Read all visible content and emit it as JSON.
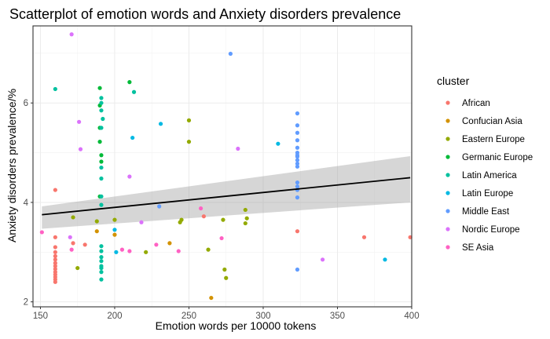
{
  "chart_data": {
    "type": "scatter",
    "title": "Scatterplot of emotion words and Anxiety disorders prevalence",
    "xlabel": "Emotion words per 10000 tokens",
    "ylabel": "Anxiety disorders prevalence/%",
    "xlim": [
      145,
      400
    ],
    "ylim": [
      1.9,
      7.55
    ],
    "xticks": [
      150,
      200,
      250,
      300,
      350,
      400
    ],
    "yticks": [
      2,
      4,
      6
    ],
    "grid": true,
    "legend": {
      "title": "cluster",
      "placement": "right"
    },
    "colors": {
      "African": "#F8766D",
      "Confucian Asia": "#D39200",
      "Eastern Europe": "#93AA00",
      "Germanic Europe": "#00BA38",
      "Latin America": "#00C19F",
      "Latin Europe": "#00B9E3",
      "Middle East": "#619CFF",
      "Nordic Europe": "#DB72FB",
      "SE Asia": "#FF61C3"
    },
    "trend": {
      "intercept": 3.3,
      "slope": 0.003,
      "ci_low": [
        3.47,
        4.0
      ],
      "ci_high": [
        3.92,
        4.93
      ],
      "x_range": [
        151,
        399
      ]
    },
    "series": [
      {
        "name": "African",
        "points": [
          [
            160,
            4.25
          ],
          [
            160,
            3.3
          ],
          [
            160,
            3.1
          ],
          [
            160,
            3.0
          ],
          [
            160,
            2.92
          ],
          [
            160,
            2.85
          ],
          [
            160,
            2.78
          ],
          [
            160,
            2.72
          ],
          [
            160,
            2.66
          ],
          [
            160,
            2.6
          ],
          [
            160,
            2.55
          ],
          [
            160,
            2.5
          ],
          [
            160,
            2.45
          ],
          [
            160,
            2.4
          ],
          [
            172,
            3.18
          ],
          [
            180,
            3.15
          ],
          [
            260,
            3.72
          ],
          [
            323,
            3.42
          ],
          [
            368,
            3.3
          ],
          [
            399,
            3.3
          ]
        ]
      },
      {
        "name": "Confucian Asia",
        "points": [
          [
            188,
            3.42
          ],
          [
            200,
            3.35
          ],
          [
            237,
            3.18
          ],
          [
            265,
            2.08
          ]
        ]
      },
      {
        "name": "Eastern Europe",
        "points": [
          [
            172,
            3.7
          ],
          [
            175,
            2.68
          ],
          [
            188,
            3.62
          ],
          [
            200,
            3.65
          ],
          [
            221,
            3.0
          ],
          [
            244,
            3.6
          ],
          [
            245,
            3.65
          ],
          [
            250,
            5.65
          ],
          [
            250,
            5.22
          ],
          [
            263,
            3.05
          ],
          [
            273,
            3.65
          ],
          [
            274,
            2.65
          ],
          [
            275,
            2.48
          ],
          [
            288,
            3.58
          ],
          [
            288,
            3.85
          ],
          [
            289,
            3.68
          ]
        ]
      },
      {
        "name": "Germanic Europe",
        "points": [
          [
            190,
            6.3
          ],
          [
            190,
            5.95
          ],
          [
            190,
            5.5
          ],
          [
            190,
            5.22
          ],
          [
            191,
            4.95
          ],
          [
            191,
            4.82
          ],
          [
            190,
            4.12
          ],
          [
            210,
            6.42
          ]
        ]
      },
      {
        "name": "Latin America",
        "points": [
          [
            160,
            6.28
          ],
          [
            191,
            6.1
          ],
          [
            191,
            6.0
          ],
          [
            191,
            5.85
          ],
          [
            192,
            5.68
          ],
          [
            191,
            5.5
          ],
          [
            191,
            4.7
          ],
          [
            191,
            4.48
          ],
          [
            191,
            4.12
          ],
          [
            191,
            3.95
          ],
          [
            191,
            3.12
          ],
          [
            191,
            3.02
          ],
          [
            191,
            2.9
          ],
          [
            191,
            2.82
          ],
          [
            191,
            2.72
          ],
          [
            191,
            2.68
          ],
          [
            191,
            2.6
          ],
          [
            191,
            2.45
          ],
          [
            213,
            6.22
          ]
        ]
      },
      {
        "name": "Latin Europe",
        "points": [
          [
            212,
            5.3
          ],
          [
            231,
            5.58
          ],
          [
            310,
            5.18
          ],
          [
            382,
            2.85
          ],
          [
            200,
            3.45
          ],
          [
            201,
            3.0
          ]
        ]
      },
      {
        "name": "Middle East",
        "points": [
          [
            278,
            6.99
          ],
          [
            323,
            5.79
          ],
          [
            323,
            5.55
          ],
          [
            323,
            5.4
          ],
          [
            323,
            5.25
          ],
          [
            323,
            5.1
          ],
          [
            323,
            5.0
          ],
          [
            323,
            4.95
          ],
          [
            323,
            4.92
          ],
          [
            323,
            4.85
          ],
          [
            323,
            4.78
          ],
          [
            323,
            4.72
          ],
          [
            323,
            4.4
          ],
          [
            323,
            4.32
          ],
          [
            323,
            4.25
          ],
          [
            323,
            4.1
          ],
          [
            323,
            2.65
          ],
          [
            230,
            3.92
          ]
        ]
      },
      {
        "name": "Nordic Europe",
        "points": [
          [
            171,
            7.38
          ],
          [
            176,
            5.62
          ],
          [
            177,
            5.07
          ],
          [
            170,
            3.3
          ],
          [
            210,
            4.52
          ],
          [
            218,
            3.6
          ],
          [
            283,
            5.08
          ],
          [
            340,
            2.85
          ]
        ]
      },
      {
        "name": "SE Asia",
        "points": [
          [
            151,
            3.4
          ],
          [
            171,
            3.05
          ],
          [
            205,
            3.05
          ],
          [
            210,
            3.02
          ],
          [
            228,
            3.15
          ],
          [
            243,
            3.02
          ],
          [
            258,
            3.88
          ],
          [
            272,
            3.28
          ]
        ]
      }
    ]
  }
}
